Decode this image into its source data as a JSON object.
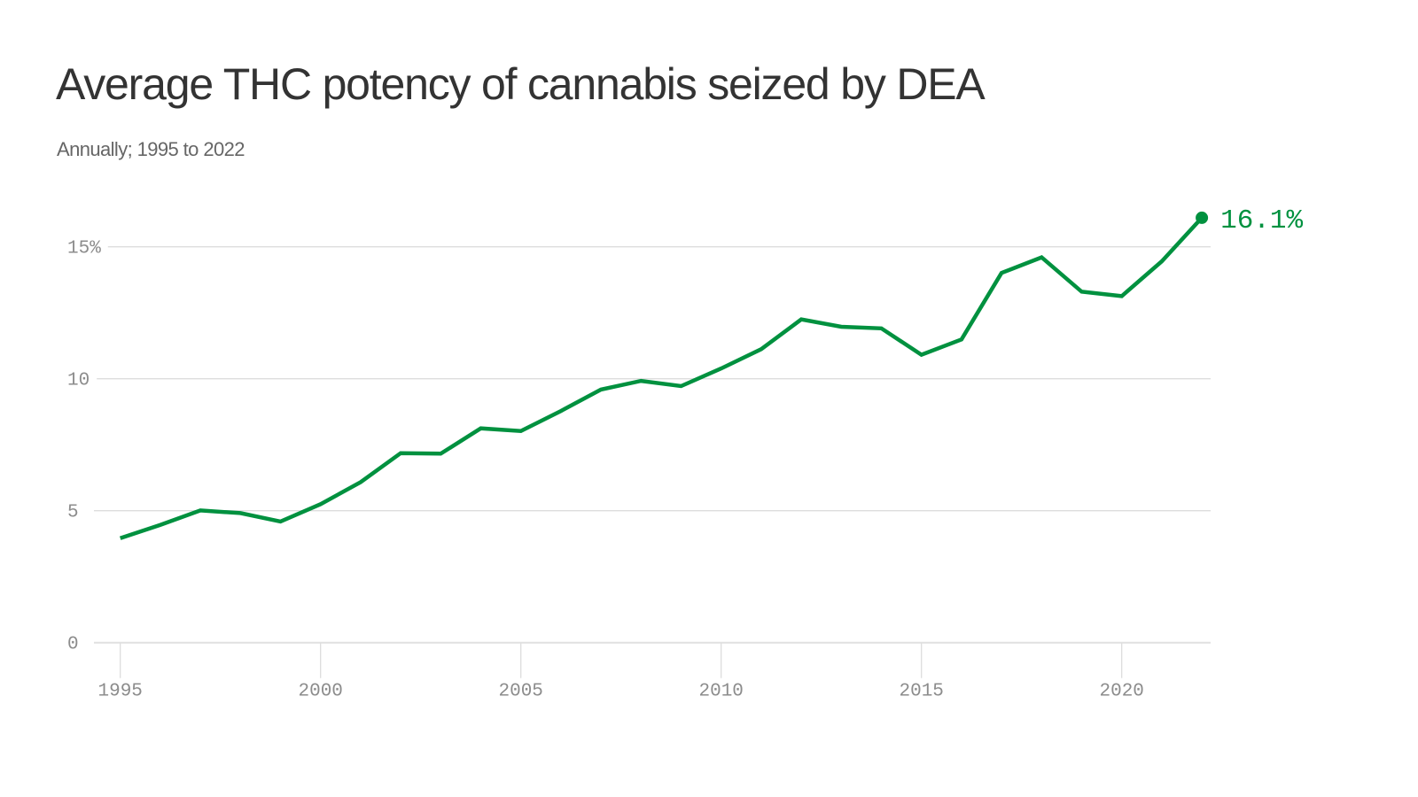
{
  "header": {
    "title": "Average THC potency of cannabis seized by DEA",
    "subtitle": "Annually; 1995 to 2022"
  },
  "colors": {
    "line": "#00913f",
    "grid": "#dddddd",
    "tick_label": "#8c8c8c",
    "title": "#333333",
    "subtitle": "#666666"
  },
  "chart_data": {
    "type": "line",
    "title": "Average THC potency of cannabis seized by DEA",
    "subtitle": "Annually; 1995 to 2022",
    "xlabel": "",
    "ylabel": "",
    "x": [
      1995,
      1996,
      1997,
      1998,
      1999,
      2000,
      2001,
      2002,
      2003,
      2004,
      2005,
      2006,
      2007,
      2008,
      2009,
      2010,
      2011,
      2012,
      2013,
      2014,
      2015,
      2016,
      2017,
      2018,
      2019,
      2020,
      2021,
      2022
    ],
    "series": [
      {
        "name": "Average THC potency (%)",
        "values": [
          3.96,
          4.46,
          5.01,
          4.91,
          4.59,
          5.25,
          6.08,
          7.18,
          7.16,
          8.12,
          8.02,
          8.78,
          9.59,
          9.92,
          9.72,
          10.39,
          11.12,
          12.25,
          11.97,
          11.91,
          10.91,
          11.49,
          14.01,
          14.6,
          13.3,
          13.13,
          14.45,
          16.1
        ]
      }
    ],
    "xlim": [
      1995,
      2022
    ],
    "ylim": [
      0,
      16.5
    ],
    "y_ticks": [
      {
        "value": 0,
        "label": "0"
      },
      {
        "value": 5,
        "label": "5"
      },
      {
        "value": 10,
        "label": "10"
      },
      {
        "value": 15,
        "label": "15%"
      }
    ],
    "x_ticks": [
      {
        "value": 1995,
        "label": "1995"
      },
      {
        "value": 2000,
        "label": "2000"
      },
      {
        "value": 2005,
        "label": "2005"
      },
      {
        "value": 2010,
        "label": "2010"
      },
      {
        "value": 2015,
        "label": "2015"
      },
      {
        "value": 2020,
        "label": "2020"
      }
    ],
    "grid": "horizontal",
    "legend": "none",
    "annotations": [
      {
        "x": 2022,
        "y": 16.1,
        "text": "16.1%"
      }
    ]
  }
}
